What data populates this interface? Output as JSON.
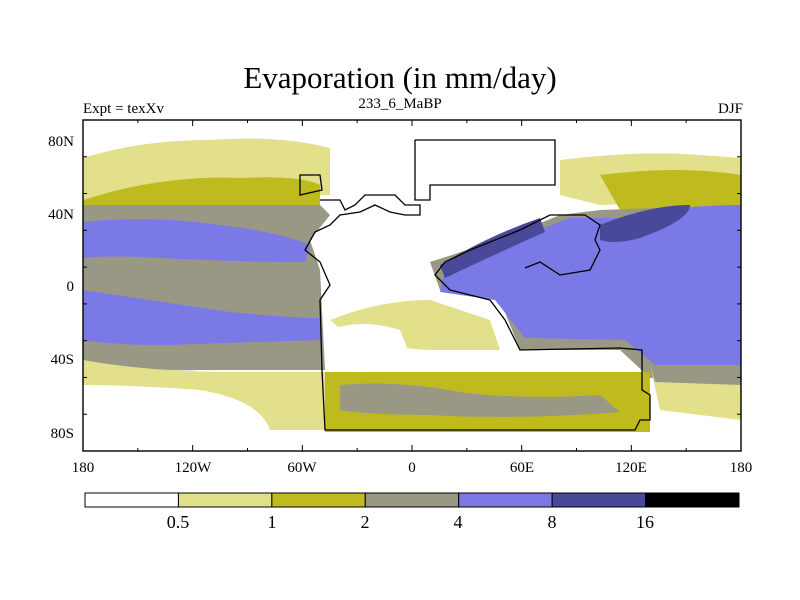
{
  "title": "Evaporation (in mm/day)",
  "left_label": "Expt = texXv",
  "center_label": "233_6_MaBP",
  "right_label": "DJF",
  "lat_ticks": [
    "80N",
    "40N",
    "0",
    "40S",
    "80S"
  ],
  "lon_ticks": [
    "180",
    "120W",
    "60W",
    "0",
    "60E",
    "120E",
    "180"
  ],
  "colorbar": {
    "bins": [
      {
        "color": "#ffffff"
      },
      {
        "color": "#e3e08c"
      },
      {
        "color": "#bfbb1e"
      },
      {
        "color": "#999884"
      },
      {
        "color": "#7b79e6"
      },
      {
        "color": "#4a4899"
      },
      {
        "color": "#000000"
      }
    ],
    "labels": [
      "0.5",
      "1",
      "2",
      "4",
      "8",
      "16"
    ]
  },
  "colors": {
    "ocean_band_low": "#e3e08c",
    "frame": "#000000"
  }
}
